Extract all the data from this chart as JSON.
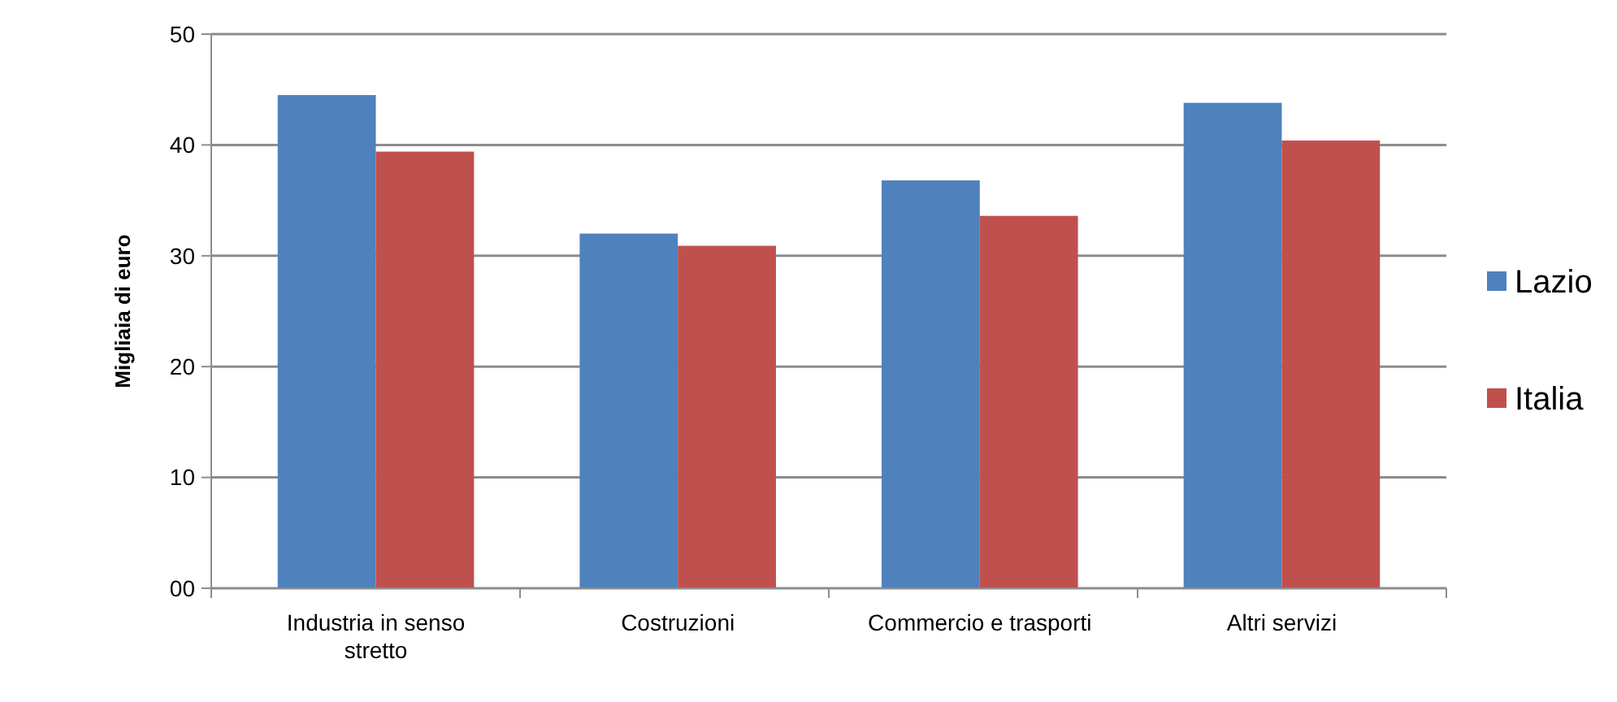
{
  "chart_data": {
    "type": "bar",
    "ylabel": "Migliaia di euro",
    "categories": [
      "Industria in senso stretto",
      "Costruzioni",
      "Commercio e trasporti",
      "Altri servizi"
    ],
    "series": [
      {
        "name": "Lazio",
        "color": "#4f81bd",
        "values": [
          44.5,
          32.0,
          36.8,
          43.8
        ]
      },
      {
        "name": "Italia",
        "color": "#c0504d",
        "values": [
          39.4,
          30.9,
          33.6,
          40.4
        ]
      }
    ],
    "ylim": [
      0,
      50
    ],
    "yticks": [
      {
        "value": 0,
        "label": "00"
      },
      10,
      20,
      30,
      40,
      50
    ],
    "grid": "y",
    "legend": "right"
  }
}
